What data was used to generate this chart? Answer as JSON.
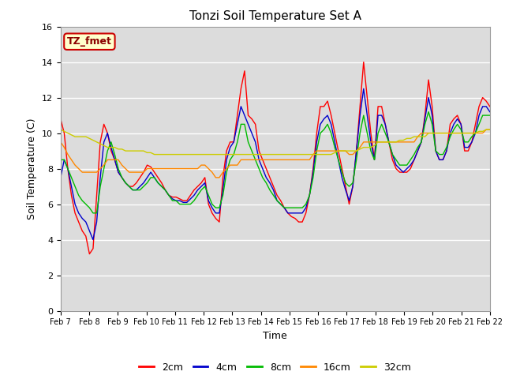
{
  "title": "Tonzi Soil Temperature Set A",
  "xlabel": "Time",
  "ylabel": "Soil Temperature (C)",
  "ylim": [
    0,
    16
  ],
  "yticks": [
    0,
    2,
    4,
    6,
    8,
    10,
    12,
    14,
    16
  ],
  "plot_bg": "#dcdcdc",
  "fig_bg": "#ffffff",
  "legend_label": "TZ_fmet",
  "legend_bg": "#ffffcc",
  "legend_border": "#cc0000",
  "series_labels": [
    "2cm",
    "4cm",
    "8cm",
    "16cm",
    "32cm"
  ],
  "series_colors": [
    "#ff0000",
    "#0000cc",
    "#00bb00",
    "#ff8800",
    "#cccc00"
  ],
  "x_tick_labels": [
    "Feb 7",
    "Feb 8",
    "Feb 9",
    "Feb 10",
    "Feb 11",
    "Feb 12",
    "Feb 13",
    "Feb 14",
    "Feb 15",
    "Feb 16",
    "Feb 17",
    "Feb 18",
    "Feb 19",
    "Feb 20",
    "Feb 21",
    "Feb 22"
  ],
  "num_days": 15,
  "pts_per_day": 8,
  "data_2cm": [
    10.8,
    10.0,
    8.0,
    6.5,
    5.5,
    5.0,
    4.5,
    4.2,
    3.2,
    3.5,
    6.5,
    9.5,
    10.5,
    10.0,
    9.0,
    8.5,
    7.8,
    7.5,
    7.2,
    7.0,
    7.0,
    7.2,
    7.5,
    7.8,
    8.2,
    8.1,
    7.8,
    7.5,
    7.2,
    6.8,
    6.5,
    6.4,
    6.4,
    6.3,
    6.2,
    6.2,
    6.5,
    6.8,
    7.0,
    7.2,
    7.5,
    6.0,
    5.5,
    5.2,
    5.0,
    7.5,
    9.0,
    9.5,
    9.5,
    11.0,
    12.5,
    13.5,
    11.0,
    10.8,
    10.5,
    9.0,
    8.5,
    8.0,
    7.5,
    7.0,
    6.5,
    6.2,
    5.8,
    5.5,
    5.3,
    5.2,
    5.0,
    5.0,
    5.5,
    6.5,
    8.0,
    10.0,
    11.5,
    11.5,
    11.8,
    11.0,
    10.0,
    9.0,
    8.0,
    7.0,
    6.0,
    7.0,
    9.0,
    11.5,
    14.0,
    12.0,
    10.0,
    8.5,
    11.5,
    11.5,
    10.5,
    9.5,
    8.5,
    8.0,
    7.8,
    7.8,
    7.8,
    8.0,
    8.5,
    9.0,
    9.5,
    11.0,
    13.0,
    11.5,
    9.0,
    8.5,
    8.5,
    9.0,
    10.5,
    10.8,
    11.0,
    10.5,
    9.0,
    9.0,
    9.5,
    10.5,
    11.5,
    12.0,
    11.8,
    11.5
  ],
  "data_4cm": [
    7.5,
    8.5,
    8.0,
    7.0,
    6.0,
    5.5,
    5.2,
    5.0,
    4.5,
    4.0,
    5.0,
    7.5,
    9.5,
    10.0,
    9.2,
    8.5,
    7.8,
    7.5,
    7.2,
    7.0,
    6.8,
    6.8,
    7.0,
    7.2,
    7.5,
    7.8,
    7.5,
    7.2,
    7.0,
    6.8,
    6.5,
    6.3,
    6.2,
    6.2,
    6.1,
    6.1,
    6.3,
    6.5,
    6.8,
    7.0,
    7.2,
    6.2,
    5.8,
    5.5,
    5.5,
    6.8,
    8.5,
    9.2,
    9.5,
    10.5,
    11.5,
    11.0,
    10.5,
    10.0,
    9.5,
    8.5,
    8.0,
    7.5,
    7.2,
    6.8,
    6.2,
    6.0,
    5.8,
    5.5,
    5.5,
    5.5,
    5.5,
    5.5,
    5.8,
    6.5,
    7.8,
    9.5,
    10.5,
    10.8,
    11.0,
    10.5,
    9.5,
    8.5,
    7.5,
    6.8,
    6.2,
    7.0,
    9.0,
    11.0,
    12.5,
    11.0,
    9.5,
    8.5,
    11.0,
    11.0,
    10.5,
    9.5,
    8.8,
    8.2,
    8.0,
    7.8,
    8.0,
    8.2,
    8.5,
    9.0,
    9.5,
    10.8,
    12.0,
    11.0,
    9.0,
    8.5,
    8.5,
    9.0,
    10.0,
    10.5,
    10.8,
    10.5,
    9.2,
    9.2,
    9.5,
    10.0,
    11.0,
    11.5,
    11.5,
    11.2
  ],
  "data_8cm": [
    8.5,
    8.5,
    8.0,
    7.5,
    7.0,
    6.5,
    6.2,
    6.0,
    5.8,
    5.5,
    5.5,
    7.0,
    8.0,
    9.0,
    9.5,
    8.8,
    8.0,
    7.5,
    7.2,
    7.0,
    6.8,
    6.8,
    6.8,
    7.0,
    7.2,
    7.5,
    7.5,
    7.2,
    7.0,
    6.8,
    6.5,
    6.2,
    6.2,
    6.0,
    6.0,
    6.0,
    6.0,
    6.2,
    6.5,
    6.8,
    7.0,
    6.5,
    6.0,
    5.8,
    5.8,
    6.5,
    7.8,
    8.5,
    8.8,
    9.5,
    10.5,
    10.5,
    9.5,
    9.0,
    8.5,
    8.0,
    7.5,
    7.2,
    6.8,
    6.5,
    6.2,
    6.0,
    5.8,
    5.8,
    5.8,
    5.8,
    5.8,
    5.8,
    6.0,
    6.5,
    7.5,
    9.0,
    10.0,
    10.2,
    10.5,
    10.0,
    9.2,
    8.5,
    7.8,
    7.2,
    7.0,
    7.2,
    8.5,
    10.0,
    11.0,
    10.0,
    9.0,
    8.5,
    10.0,
    10.5,
    10.0,
    9.5,
    8.8,
    8.5,
    8.2,
    8.2,
    8.2,
    8.5,
    8.8,
    9.2,
    9.5,
    10.5,
    11.2,
    10.5,
    9.0,
    8.8,
    8.8,
    9.2,
    9.8,
    10.2,
    10.5,
    10.2,
    9.5,
    9.5,
    9.8,
    10.0,
    10.5,
    11.0,
    11.0,
    11.0
  ],
  "data_16cm": [
    9.5,
    9.2,
    8.8,
    8.5,
    8.2,
    8.0,
    7.8,
    7.8,
    7.8,
    7.8,
    7.8,
    8.0,
    8.2,
    8.5,
    8.5,
    8.5,
    8.5,
    8.2,
    8.0,
    7.8,
    7.8,
    7.8,
    7.8,
    7.8,
    8.0,
    8.0,
    8.0,
    8.0,
    8.0,
    8.0,
    8.0,
    8.0,
    8.0,
    8.0,
    8.0,
    8.0,
    8.0,
    8.0,
    8.0,
    8.2,
    8.2,
    8.0,
    7.8,
    7.5,
    7.5,
    7.8,
    8.0,
    8.2,
    8.2,
    8.2,
    8.5,
    8.5,
    8.5,
    8.5,
    8.5,
    8.5,
    8.5,
    8.5,
    8.5,
    8.5,
    8.5,
    8.5,
    8.5,
    8.5,
    8.5,
    8.5,
    8.5,
    8.5,
    8.5,
    8.5,
    8.8,
    9.0,
    9.0,
    9.0,
    9.0,
    9.0,
    9.0,
    9.0,
    9.0,
    9.0,
    8.8,
    8.8,
    9.0,
    9.2,
    9.5,
    9.5,
    9.5,
    9.5,
    9.5,
    9.5,
    9.5,
    9.5,
    9.5,
    9.5,
    9.5,
    9.5,
    9.5,
    9.5,
    9.5,
    9.8,
    10.0,
    10.0,
    10.0,
    10.0,
    10.0,
    10.0,
    10.0,
    10.0,
    10.0,
    10.0,
    10.0,
    10.0,
    10.0,
    10.0,
    10.0,
    10.0,
    10.0,
    10.0,
    10.2,
    10.2
  ],
  "data_32cm": [
    10.2,
    10.1,
    10.0,
    9.9,
    9.8,
    9.8,
    9.8,
    9.8,
    9.7,
    9.6,
    9.5,
    9.4,
    9.3,
    9.2,
    9.2,
    9.2,
    9.1,
    9.1,
    9.0,
    9.0,
    9.0,
    9.0,
    9.0,
    9.0,
    8.9,
    8.9,
    8.8,
    8.8,
    8.8,
    8.8,
    8.8,
    8.8,
    8.8,
    8.8,
    8.8,
    8.8,
    8.8,
    8.8,
    8.8,
    8.8,
    8.8,
    8.8,
    8.8,
    8.8,
    8.8,
    8.8,
    8.8,
    8.8,
    8.8,
    8.8,
    8.8,
    8.8,
    8.8,
    8.8,
    8.8,
    8.8,
    8.8,
    8.8,
    8.8,
    8.8,
    8.8,
    8.8,
    8.8,
    8.8,
    8.8,
    8.8,
    8.8,
    8.8,
    8.8,
    8.8,
    8.8,
    8.8,
    8.8,
    8.8,
    8.8,
    8.8,
    8.9,
    9.0,
    9.0,
    9.0,
    9.0,
    9.0,
    9.0,
    9.1,
    9.2,
    9.2,
    9.2,
    9.3,
    9.5,
    9.5,
    9.5,
    9.5,
    9.5,
    9.5,
    9.6,
    9.6,
    9.7,
    9.7,
    9.8,
    9.8,
    9.8,
    9.8,
    10.0,
    10.0,
    10.0,
    10.0,
    10.0,
    10.0,
    10.0,
    10.0,
    10.0,
    10.0,
    10.0,
    10.0,
    10.0,
    10.0,
    10.1,
    10.1,
    10.2,
    10.2
  ]
}
